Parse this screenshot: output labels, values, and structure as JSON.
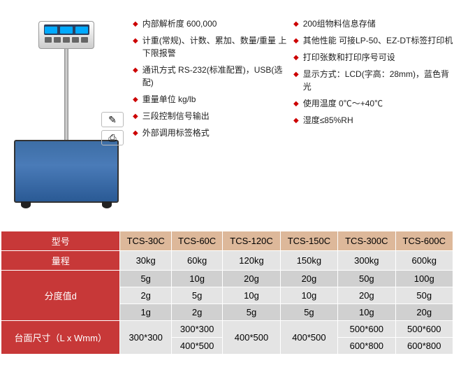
{
  "features_left": [
    "内部解析度 600,000",
    "计重(常规)、计数、累加、数量/重量 上下限报警",
    "通讯方式  RS-232(标准配置)，USB(选配)",
    "重量单位  kg/lb",
    "三段控制信号输出",
    "外部调用标签格式"
  ],
  "features_right": [
    "200组物料信息存储",
    "其他性能  可接LP-50、EZ-DT标签打印机",
    "打印张数和打印序号可设",
    "显示方式：LCD(字高：28mm)，蓝色背光",
    "使用温度 0℃～+40℃",
    "湿度≤85%RH"
  ],
  "table": {
    "headers": {
      "model": "型号",
      "range": "量程",
      "division": "分度值d",
      "platform_size": "台面尺寸（L x Wmm）"
    },
    "models": [
      "TCS-30C",
      "TCS-60C",
      "TCS-120C",
      "TCS-150C",
      "TCS-300C",
      "TCS-600C"
    ],
    "ranges": [
      "30kg",
      "60kg",
      "120kg",
      "150kg",
      "300kg",
      "600kg"
    ],
    "div_rows": [
      [
        "5g",
        "10g",
        "20g",
        "20g",
        "50g",
        "100g"
      ],
      [
        "2g",
        "5g",
        "10g",
        "10g",
        "20g",
        "50g"
      ],
      [
        "1g",
        "2g",
        "5g",
        "5g",
        "10g",
        "20g"
      ]
    ],
    "sizes": {
      "c0": "300*300",
      "c1": [
        "300*300",
        "400*500"
      ],
      "c2": "400*500",
      "c3": "400*500",
      "c4": [
        "500*600",
        "600*800"
      ],
      "c5": [
        "500*600",
        "600*800"
      ]
    }
  },
  "colors": {
    "bullet": "#c00",
    "header_bg": "#c73838",
    "subheader_bg": "#ddb89a",
    "cell_bg": "#e4e4e4",
    "cell_alt": "#d0d0d0",
    "platform": "#4a7bb8"
  }
}
